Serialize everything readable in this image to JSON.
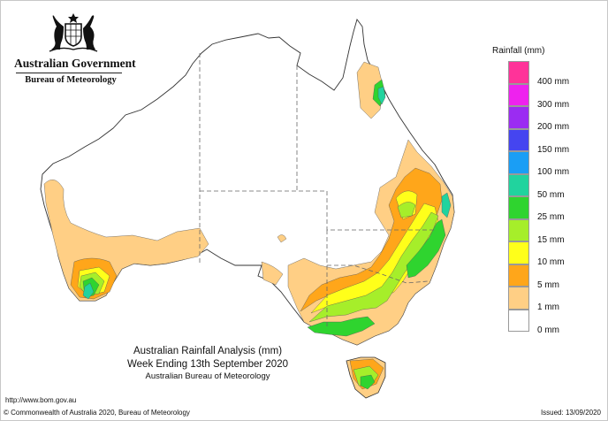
{
  "header": {
    "government": "Australian Government",
    "bureau": "Bureau of Meteorology",
    "crest_icon": "coat-of-arms-icon"
  },
  "legend": {
    "title": "Rainfall (mm)",
    "entries": [
      {
        "label": "400 mm",
        "color": "#ff3399"
      },
      {
        "label": "300 mm",
        "color": "#ee22ee"
      },
      {
        "label": "200 mm",
        "color": "#9b2cf2"
      },
      {
        "label": "150 mm",
        "color": "#4545f0"
      },
      {
        "label": "100 mm",
        "color": "#1a9ef5"
      },
      {
        "label": "50 mm",
        "color": "#21d39e"
      },
      {
        "label": "25 mm",
        "color": "#2fd42f"
      },
      {
        "label": "15 mm",
        "color": "#a6ee2a"
      },
      {
        "label": "10 mm",
        "color": "#ffff1a"
      },
      {
        "label": "5 mm",
        "color": "#ffa61a"
      },
      {
        "label": "1 mm",
        "color": "#ffcf85"
      },
      {
        "label": "0 mm",
        "color": "#ffffff"
      }
    ]
  },
  "caption": {
    "title": "Australian Rainfall Analysis (mm)",
    "week": "Week Ending 13th September 2020",
    "bureau": "Australian Bureau of Meteorology"
  },
  "footer": {
    "url": "http://www.bom.gov.au",
    "copyright": "© Commonwealth of Australia 2020, Bureau of Meteorology",
    "issued": "Issued: 13/09/2020"
  }
}
